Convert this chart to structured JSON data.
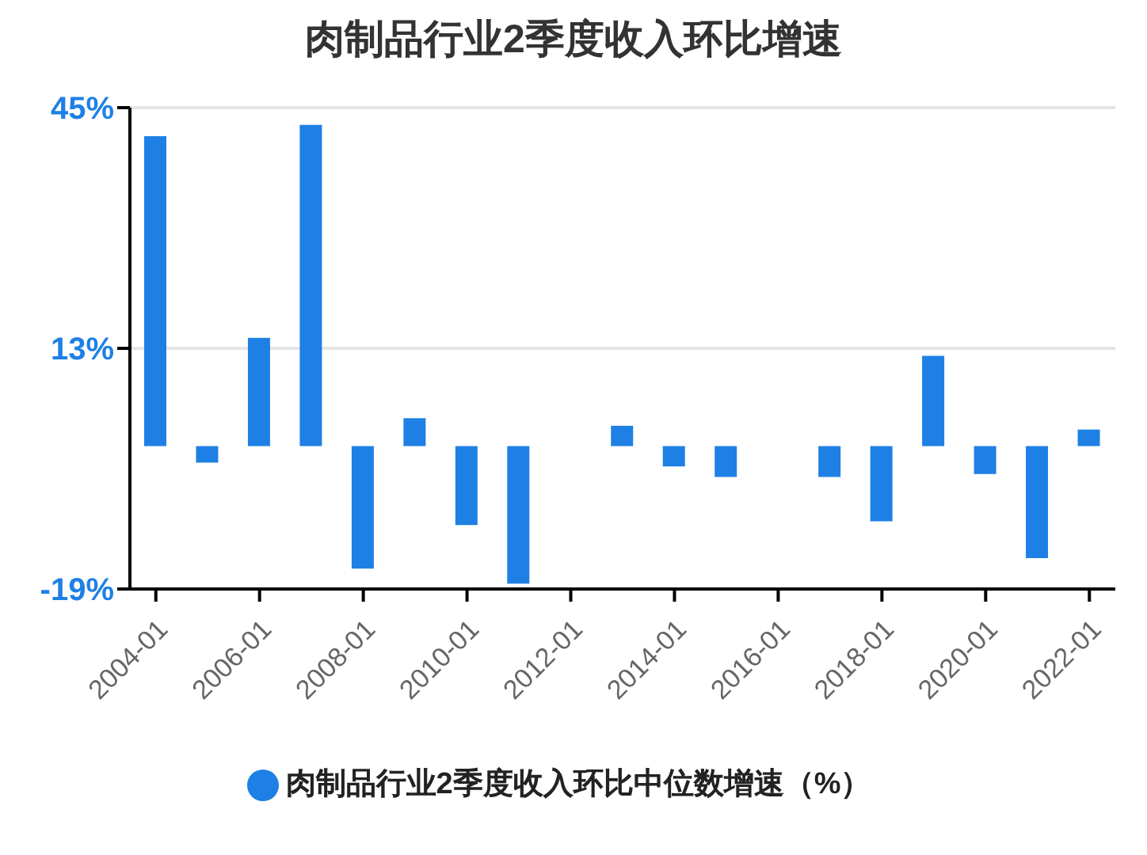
{
  "chart_data": {
    "type": "bar",
    "title": "肉制品行业2季度收入环比增速",
    "categories": [
      "2004-01",
      null,
      "2006-01",
      null,
      "2008-01",
      null,
      "2010-01",
      null,
      "2012-01",
      null,
      "2014-01",
      null,
      "2016-01",
      null,
      "2018-01",
      null,
      "2020-01",
      null,
      "2022-01"
    ],
    "series": [
      {
        "name": "肉制品行业2季度收入环比中位数增速（%）",
        "color": "#1e80e5",
        "values": [
          41.2,
          -2.2,
          14.4,
          42.7,
          -16.3,
          3.7,
          -10.5,
          -18.3,
          null,
          2.7,
          -2.7,
          -4.1,
          null,
          -4.1,
          -10,
          12,
          -3.7,
          -14.9,
          2.2
        ]
      }
    ],
    "ylim": [
      -19,
      45
    ],
    "yticks": [
      {
        "value": -19,
        "label": "-19%"
      },
      {
        "value": 13,
        "label": "13%"
      },
      {
        "value": 45,
        "label": "45%"
      }
    ],
    "grid": "y",
    "legend": "bottom"
  }
}
